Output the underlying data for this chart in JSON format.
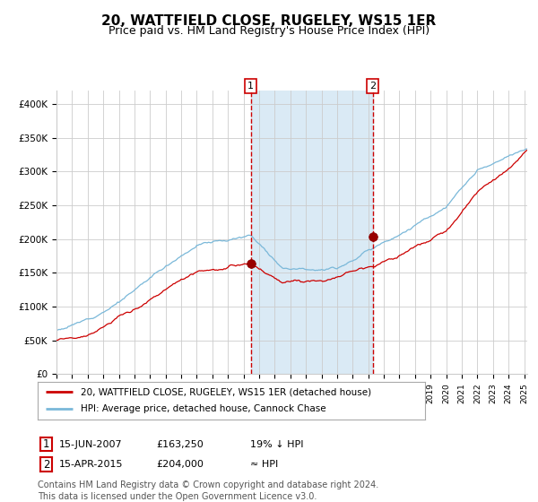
{
  "title": "20, WATTFIELD CLOSE, RUGELEY, WS15 1ER",
  "subtitle": "Price paid vs. HM Land Registry's House Price Index (HPI)",
  "title_fontsize": 11,
  "subtitle_fontsize": 9,
  "ylim": [
    0,
    420000
  ],
  "yticks": [
    0,
    50000,
    100000,
    150000,
    200000,
    250000,
    300000,
    350000,
    400000
  ],
  "ytick_labels": [
    "£0",
    "£50K",
    "£100K",
    "£150K",
    "£200K",
    "£250K",
    "£300K",
    "£350K",
    "£400K"
  ],
  "hpi_color": "#7ab8d9",
  "price_color": "#cc0000",
  "marker_color": "#990000",
  "dashed_color": "#cc0000",
  "shade_color": "#daeaf5",
  "grid_color": "#cccccc",
  "background_color": "#ffffff",
  "transaction1_date_num": 2007.46,
  "transaction1_price": 163250,
  "transaction2_date_num": 2015.29,
  "transaction2_price": 204000,
  "legend_label1": "20, WATTFIELD CLOSE, RUGELEY, WS15 1ER (detached house)",
  "legend_label2": "HPI: Average price, detached house, Cannock Chase",
  "annot1_label": "15-JUN-2007",
  "annot1_price": "£163,250",
  "annot1_rel": "19% ↓ HPI",
  "annot2_label": "15-APR-2015",
  "annot2_price": "£204,000",
  "annot2_rel": "≈ HPI",
  "footnote": "Contains HM Land Registry data © Crown copyright and database right 2024.\nThis data is licensed under the Open Government Licence v3.0.",
  "footnote_fontsize": 7,
  "x_start_year": 1995,
  "x_end_year": 2025
}
